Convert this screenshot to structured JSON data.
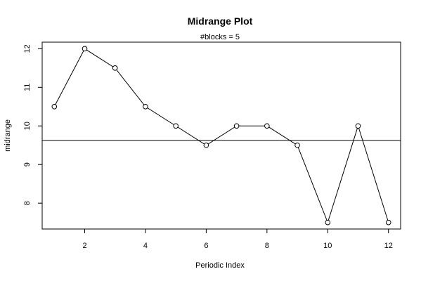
{
  "chart_data": {
    "type": "line",
    "title": "Midrange Plot",
    "subtitle": "#blocks =  5",
    "xlabel": "Periodic Index",
    "ylabel": "midrange",
    "x": [
      1,
      2,
      3,
      4,
      5,
      6,
      7,
      8,
      9,
      10,
      11,
      12
    ],
    "values": [
      10.5,
      12.0,
      11.5,
      10.5,
      10.0,
      9.5,
      10.0,
      10.0,
      9.5,
      7.5,
      10.0,
      7.5
    ],
    "reference_line": 9.625,
    "xlim": [
      0.6,
      12.4
    ],
    "ylim": [
      7.33,
      12.17
    ],
    "x_ticks": [
      2,
      4,
      6,
      8,
      10,
      12
    ],
    "y_ticks": [
      8,
      9,
      10,
      11,
      12
    ],
    "grid": false,
    "legend": "none",
    "colors": {
      "line": "#000000",
      "marker_fill": "#ffffff",
      "marker_stroke": "#000000",
      "reference_line": "#000000",
      "background": "#ffffff"
    }
  }
}
